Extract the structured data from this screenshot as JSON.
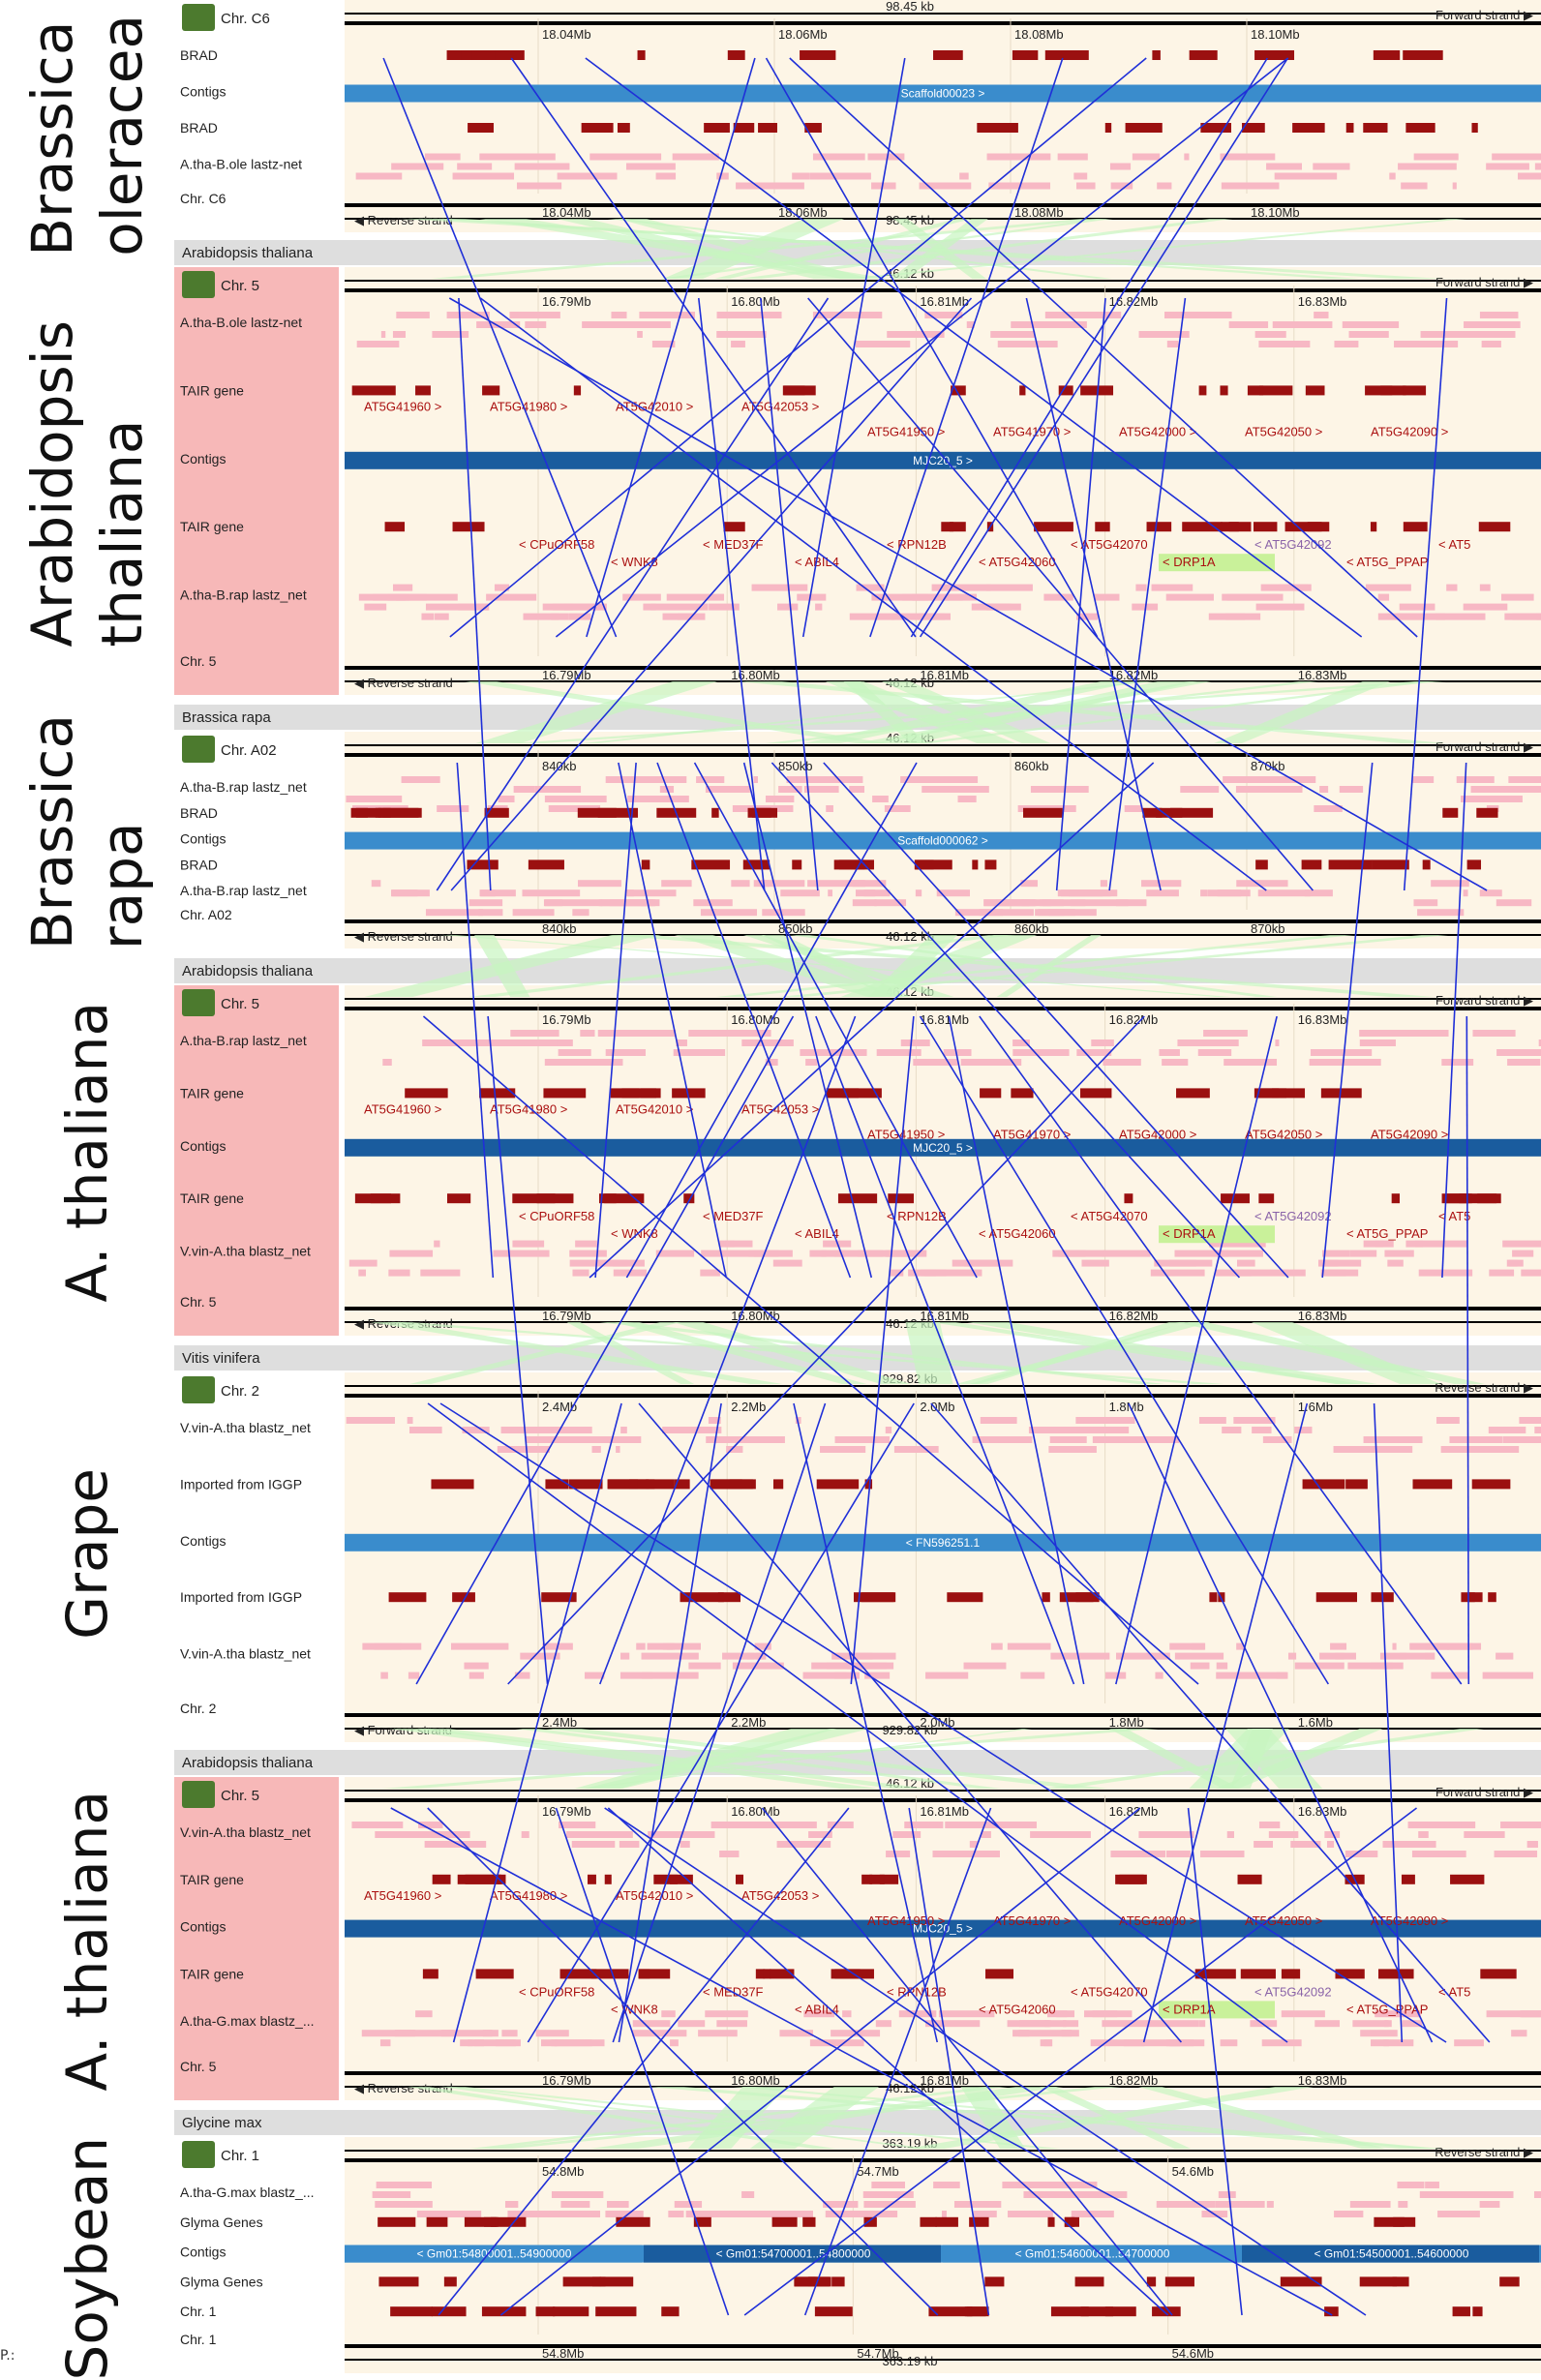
{
  "species_labels": [
    {
      "lines": [
        "Brassica",
        "oleracea"
      ]
    },
    {
      "lines": [
        "Arabidopsis",
        "thaliana"
      ]
    },
    {
      "lines": [
        "Brassica",
        "rapa"
      ]
    },
    {
      "lines": [
        "A. thaliana"
      ]
    },
    {
      "lines": [
        "Grape"
      ]
    },
    {
      "lines": [
        "A. thaliana"
      ]
    },
    {
      "lines": [
        "Soybean"
      ]
    }
  ],
  "colors": {
    "track_bg": "#fdf5e6",
    "header_bg": "#dedede",
    "ref_label_bg": "#f7b8b8",
    "gene_red": "#9b1010",
    "contig_blue": "#3a8ccc",
    "contig_dark": "#1a5c9e",
    "synteny_green": "#c8f5c0",
    "link_blue": "#1f2fd8",
    "lastz_pink": "#f7b8c4",
    "gene_label_red": "#aa1010",
    "gene_label_purple": "#8a63a8",
    "highlight_green": "#c9f19a"
  },
  "panels": [
    {
      "header": "",
      "species_icon": "broccoli-icon",
      "chr": "Chr. C6",
      "top_strand": "Forward strand",
      "bottom_strand": "Reverse strand",
      "span_label": "98.45 kb",
      "ticks": [
        "18.04Mb",
        "18.06Mb",
        "18.08Mb",
        "18.10Mb"
      ],
      "tracks": [
        "BRAD",
        "Contigs",
        "BRAD",
        "A.tha-B.ole lastz-net"
      ],
      "contigs": [
        "Scaffold00023 >"
      ],
      "genes": []
    },
    {
      "header": "Arabidopsis thaliana",
      "species_icon": "arabidopsis-icon",
      "chr": "Chr. 5",
      "top_strand": "Forward strand",
      "bottom_strand": "Reverse strand",
      "span_label": "46.12 kb",
      "ticks": [
        "16.79Mb",
        "16.80Mb",
        "16.81Mb",
        "16.82Mb",
        "16.83Mb"
      ],
      "tracks": [
        "A.tha-B.ole lastz-net",
        "TAIR gene",
        "Contigs",
        "TAIR gene",
        "A.tha-B.rap lastz_net"
      ],
      "contigs": [
        "MJC20_5 >"
      ],
      "genes": [
        "AT5G41960 >",
        "AT5G41980 >",
        "AT5G42010 >",
        "AT5G42053 >",
        "AT5G41950 >",
        "AT5G41970 >",
        "AT5G42000 >",
        "AT5G42050 >",
        "AT5G42090 >",
        "< CPuORF58",
        "< WNK8",
        "< MED37F",
        "< ABIL4",
        "< RPN12B",
        "< AT5G42060",
        "< AT5G42070",
        "< DRP1A",
        "< AT5G42092",
        "< AT5G_PPAP",
        "< AT5"
      ]
    },
    {
      "header": "Brassica rapa",
      "species_icon": "cabbage-icon",
      "chr": "Chr. A02",
      "top_strand": "Forward strand",
      "bottom_strand": "Reverse strand",
      "span_label": "46.12 kb",
      "ticks": [
        "840kb",
        "850kb",
        "860kb",
        "870kb"
      ],
      "tracks": [
        "A.tha-B.rap lastz_net",
        "BRAD",
        "Contigs",
        "BRAD",
        "A.tha-B.rap lastz_net"
      ],
      "contigs": [
        "Scaffold000062 >"
      ],
      "genes": []
    },
    {
      "header": "Arabidopsis thaliana",
      "species_icon": "arabidopsis-icon",
      "chr": "Chr. 5",
      "top_strand": "Forward strand",
      "bottom_strand": "Reverse strand",
      "span_label": "46.12 kb",
      "ticks": [
        "16.79Mb",
        "16.80Mb",
        "16.81Mb",
        "16.82Mb",
        "16.83Mb"
      ],
      "tracks": [
        "A.tha-B.rap lastz_net",
        "TAIR gene",
        "Contigs",
        "TAIR gene",
        "V.vin-A.tha blastz_net"
      ],
      "contigs": [
        "MJC20_5 >"
      ],
      "genes": [
        "AT5G41960 >",
        "AT5G41980 >",
        "AT5G42010 >",
        "AT5G42053 >",
        "AT5G41950 >",
        "AT5G41970 >",
        "AT5G42000 >",
        "AT5G42050 >",
        "AT5G42090 >",
        "< CPuORF58",
        "< WNK8",
        "< MED37F",
        "< ABIL4",
        "< RPN12B",
        "< AT5G42060",
        "< AT5G42070",
        "< DRP1A",
        "< AT5G42092",
        "< AT5G_PPAP",
        "< AT5"
      ]
    },
    {
      "header": "Vitis vinifera",
      "species_icon": "grape-icon",
      "chr": "Chr. 2",
      "top_strand": "Reverse strand",
      "bottom_strand": "Forward strand",
      "span_label": "929.82 kb",
      "ticks": [
        "2.4Mb",
        "2.2Mb",
        "2.0Mb",
        "1.8Mb",
        "1.6Mb"
      ],
      "tracks": [
        "V.vin-A.tha blastz_net",
        "Imported from IGGP",
        "Contigs",
        "Imported from IGGP",
        "V.vin-A.tha blastz_net"
      ],
      "contigs": [
        "< FN596251.1"
      ],
      "genes": []
    },
    {
      "header": "Arabidopsis thaliana",
      "species_icon": "arabidopsis-icon",
      "chr": "Chr. 5",
      "top_strand": "Forward strand",
      "bottom_strand": "Reverse strand",
      "span_label": "46.12 kb",
      "ticks": [
        "16.79Mb",
        "16.80Mb",
        "16.81Mb",
        "16.82Mb",
        "16.83Mb"
      ],
      "tracks": [
        "V.vin-A.tha blastz_net",
        "TAIR gene",
        "Contigs",
        "TAIR gene",
        "A.tha-G.max blastz_..."
      ],
      "contigs": [
        "MJC20_5 >"
      ],
      "genes": [
        "AT5G41960 >",
        "AT5G41980 >",
        "AT5G42010 >",
        "AT5G42053 >",
        "AT5G41950 >",
        "AT5G41970 >",
        "AT5G42000 >",
        "AT5G42050 >",
        "AT5G42090 >",
        "< CPuORF58",
        "< WNK8",
        "< MED37F",
        "< ABIL4",
        "< RPN12B",
        "< AT5G42060",
        "< AT5G42070",
        "< DRP1A",
        "< AT5G42092",
        "< AT5G_PPAP",
        "< AT5"
      ]
    },
    {
      "header": "Glycine max",
      "species_icon": "soybean-icon",
      "chr": "Chr. 1",
      "top_strand": "Reverse strand",
      "bottom_strand": "",
      "span_label": "363.19 kb",
      "ticks": [
        "54.8Mb",
        "54.7Mb",
        "54.6Mb"
      ],
      "tracks": [
        "A.tha-G.max blastz_...",
        "Glyma Genes",
        "Contigs",
        "Glyma Genes",
        "Chr. 1"
      ],
      "contigs": [
        "< Gm01:54800001..54900000",
        "< Gm01:54700001..54800000",
        "< Gm01:54600001..54700000",
        "< Gm01:54500001..54600000"
      ],
      "genes": []
    }
  ]
}
